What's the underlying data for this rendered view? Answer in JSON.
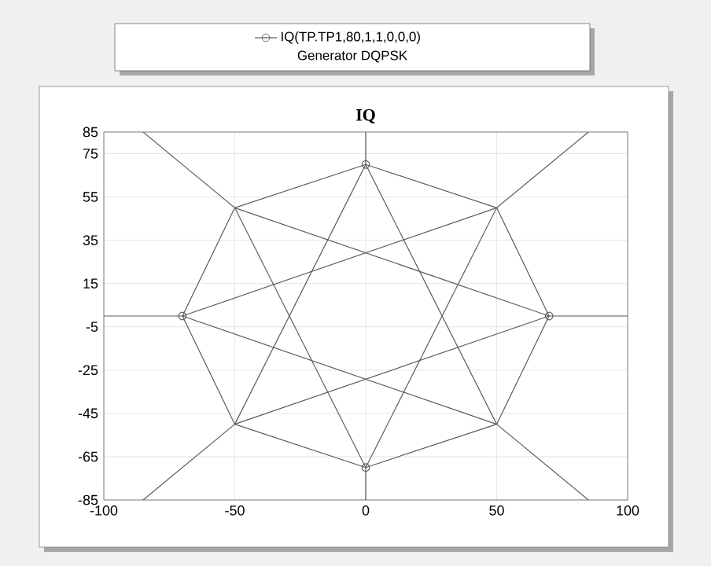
{
  "chart_data": {
    "type": "line",
    "title": "IQ",
    "legend_title": "Generator DQPSK",
    "legend": "top",
    "grid": true,
    "xlim": [
      -100,
      100
    ],
    "ylim": [
      -85,
      85
    ],
    "xticks": [
      -100,
      -50,
      0,
      50,
      100
    ],
    "yticks": [
      -85,
      -65,
      -45,
      -25,
      -5,
      15,
      35,
      55,
      75,
      85
    ],
    "series": [
      {
        "name": "IQ(TP.TP1,80,1,1,0,0,0)",
        "color": "#5a5a5a",
        "marker": "none",
        "x": [
          -70,
          -50,
          0,
          50,
          70
        ],
        "values": [
          0,
          50,
          70,
          50,
          0
        ]
      },
      {
        "color": "#5b5b5b",
        "marker": "none",
        "x": [
          -70,
          -50,
          0,
          50,
          70
        ],
        "values": [
          0,
          -50,
          -70,
          -50,
          0
        ]
      },
      {
        "color": "#5c5c5c",
        "marker": "none",
        "x": [
          0,
          50,
          85
        ],
        "values": [
          70,
          -50,
          -85
        ]
      },
      {
        "color": "#5d5d5d",
        "marker": "none",
        "x": [
          -100,
          -70,
          50
        ],
        "values": [
          0,
          0,
          -50
        ]
      },
      {
        "color": "#5e5e5e",
        "marker": "none",
        "x": [
          -70,
          50,
          85
        ],
        "values": [
          0,
          50,
          85
        ]
      },
      {
        "color": "#5f5f5f",
        "marker": "none",
        "x": [
          0,
          50
        ],
        "values": [
          -70,
          50
        ]
      },
      {
        "color": "#606060",
        "marker": "none",
        "x": [
          -50,
          0
        ],
        "values": [
          50,
          -70
        ]
      },
      {
        "color": "#616161",
        "marker": "none",
        "x": [
          -85,
          -50,
          70
        ],
        "values": [
          85,
          50,
          0
        ]
      },
      {
        "color": "#595959",
        "marker": "none",
        "x": [
          -85,
          -50,
          70
        ],
        "values": [
          -85,
          -50,
          0
        ]
      },
      {
        "color": "#585858",
        "marker": "none",
        "x": [
          -50,
          0
        ],
        "values": [
          -50,
          70
        ]
      },
      {
        "color": "#575757",
        "marker": "none",
        "x": [
          0,
          0
        ],
        "values": [
          70,
          85
        ]
      },
      {
        "color": "#555555",
        "marker": "none",
        "x": [
          70,
          100
        ],
        "values": [
          0,
          0
        ]
      },
      {
        "color": "#535353",
        "marker": "none",
        "x": [
          0,
          0
        ],
        "values": [
          -70,
          -85
        ]
      },
      {
        "type": "scatter",
        "color": "#5a5a5a",
        "marker": "circle",
        "x": [
          0,
          70,
          0,
          -70
        ],
        "values": [
          70,
          0,
          -70,
          0
        ]
      }
    ]
  }
}
